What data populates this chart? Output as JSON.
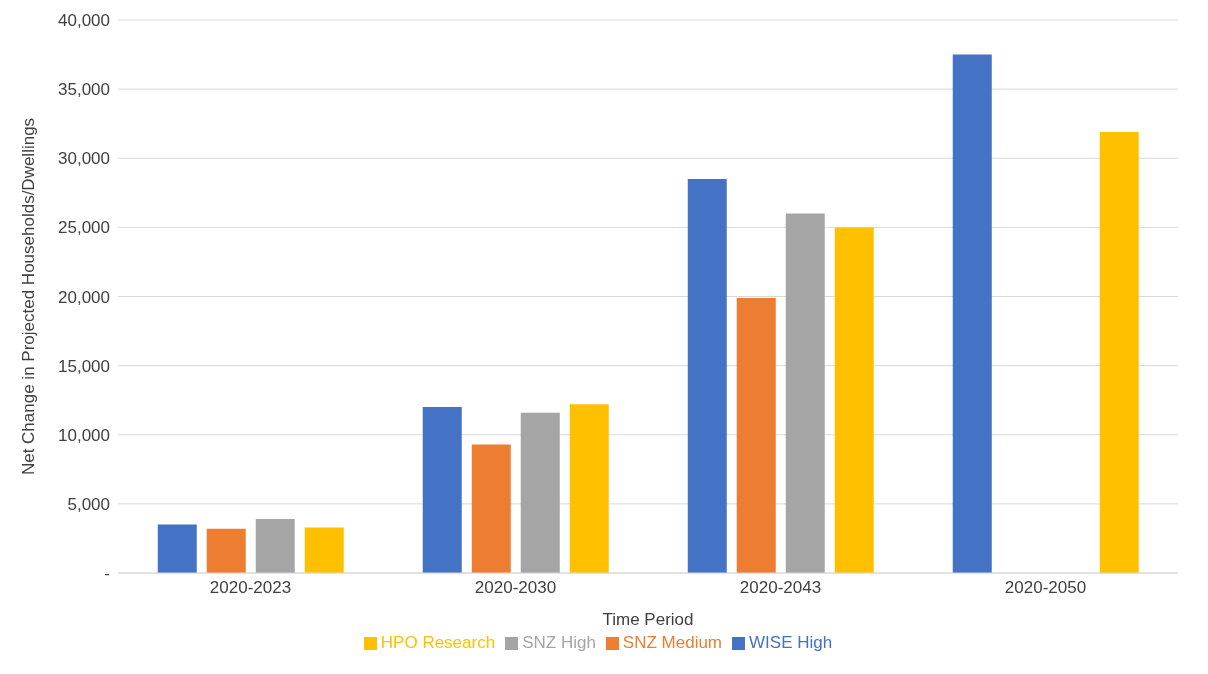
{
  "chart_data": {
    "type": "bar",
    "xlabel": "Time Period",
    "ylabel": "Net Change in Projected Households/Dwellings",
    "categories": [
      "2020-2023",
      "2020-2030",
      "2020-2043",
      "2020-2050"
    ],
    "series": [
      {
        "name": "WISE High",
        "color": "#4472c4",
        "values": [
          3500,
          12000,
          28500,
          37500
        ]
      },
      {
        "name": "SNZ Medium",
        "color": "#ed7d31",
        "values": [
          3200,
          9300,
          19900,
          null
        ]
      },
      {
        "name": "SNZ High",
        "color": "#a5a5a5",
        "values": [
          3900,
          11600,
          26000,
          null
        ]
      },
      {
        "name": "HPO Research",
        "color": "#ffc000",
        "values": [
          3300,
          12200,
          25000,
          31900
        ]
      }
    ],
    "ylim": [
      0,
      40000
    ],
    "yticks": [
      {
        "value": 0,
        "label": "-"
      },
      {
        "value": 5000,
        "label": "5,000"
      },
      {
        "value": 10000,
        "label": "10,000"
      },
      {
        "value": 15000,
        "label": "15,000"
      },
      {
        "value": 20000,
        "label": "20,000"
      },
      {
        "value": 25000,
        "label": "25,000"
      },
      {
        "value": 30000,
        "label": "30,000"
      },
      {
        "value": 35000,
        "label": "35,000"
      },
      {
        "value": 40000,
        "label": "40,000"
      }
    ],
    "grid": "y",
    "legend": "bottom"
  }
}
